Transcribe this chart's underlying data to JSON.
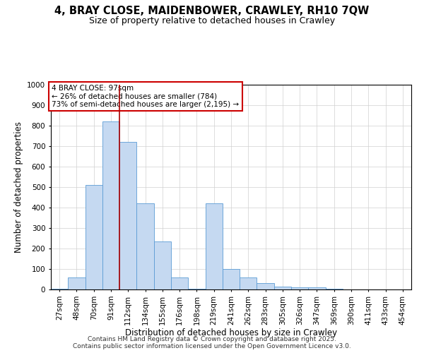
{
  "title_line1": "4, BRAY CLOSE, MAIDENBOWER, CRAWLEY, RH10 7QW",
  "title_line2": "Size of property relative to detached houses in Crawley",
  "xlabel": "Distribution of detached houses by size in Crawley",
  "ylabel": "Number of detached properties",
  "categories": [
    "27sqm",
    "48sqm",
    "70sqm",
    "91sqm",
    "112sqm",
    "134sqm",
    "155sqm",
    "176sqm",
    "198sqm",
    "219sqm",
    "241sqm",
    "262sqm",
    "283sqm",
    "305sqm",
    "326sqm",
    "347sqm",
    "369sqm",
    "390sqm",
    "411sqm",
    "433sqm",
    "454sqm"
  ],
  "values": [
    5,
    60,
    510,
    820,
    720,
    420,
    235,
    60,
    5,
    420,
    100,
    60,
    30,
    15,
    10,
    10,
    5,
    0,
    0,
    0,
    0
  ],
  "bar_color": "#c5d9f1",
  "bar_edge_color": "#5b9bd5",
  "grid_color": "#d0d0d0",
  "vline_color": "#aa0000",
  "vline_position": 3.5,
  "annotation_text": "4 BRAY CLOSE: 97sqm\n← 26% of detached houses are smaller (784)\n73% of semi-detached houses are larger (2,195) →",
  "annotation_box_color": "#cc0000",
  "ylim": [
    0,
    1000
  ],
  "yticks": [
    0,
    100,
    200,
    300,
    400,
    500,
    600,
    700,
    800,
    900,
    1000
  ],
  "footer_line1": "Contains HM Land Registry data © Crown copyright and database right 2025.",
  "footer_line2": "Contains public sector information licensed under the Open Government Licence v3.0.",
  "bg_color": "#ffffff",
  "title_fontsize": 10.5,
  "subtitle_fontsize": 9,
  "axis_label_fontsize": 8.5,
  "tick_fontsize": 7.5,
  "annotation_fontsize": 7.5,
  "footer_fontsize": 6.5
}
